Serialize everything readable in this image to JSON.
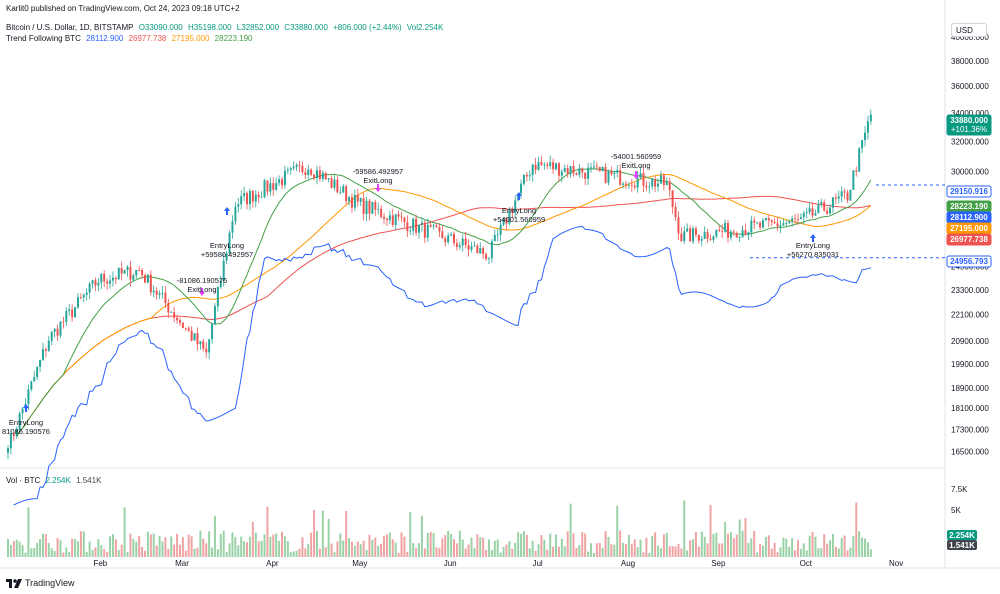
{
  "header": {
    "published_line": "Karlit0 published on TradingView.com, Oct 24, 2023 09:18 UTC+2",
    "symbol": "Bitcoin / U.S. Dollar, 1D, BITSTAMP",
    "open": "O33090.000",
    "high": "H35198.000",
    "low": "L32852.000",
    "close": "C33880.000",
    "change": "+806.000 (+2.44%)",
    "volume": "Vol2.254K",
    "indicator_name": "Trend Following BTC",
    "indicator_values": [
      "28112.900",
      "26977.738",
      "27195.000",
      "28223.190"
    ]
  },
  "currency_button": "USD",
  "footer_brand": "TradingView",
  "colors": {
    "up": "#26a69a",
    "down": "#ef5350",
    "fast_ma": "#43a047",
    "slow_ma": "#ef5350",
    "mid_ma": "#ff9800",
    "blue_line": "#2962ff",
    "last_price_bg": "#089981",
    "buy_arrow": "#2962ff",
    "sell_arrow": "#e040fb"
  },
  "chart_data": {
    "type": "candlestick",
    "x_axis_labels": [
      "Feb",
      "Mar",
      "Apr",
      "May",
      "Jun",
      "Jul",
      "Aug",
      "Sep",
      "Oct",
      "Nov"
    ],
    "y_axis_scale": "log",
    "y_axis_labels": [
      40000,
      38000,
      36000,
      34000,
      32000,
      30000,
      28000,
      26000,
      24500,
      23300,
      22100,
      20900,
      19900,
      18900,
      18100,
      17300,
      16500
    ],
    "y_range": [
      16000,
      42000
    ],
    "volume_axis_labels": [
      "7.5K",
      "5K"
    ],
    "price_close_monthly": [
      {
        "date": "2023-01-01",
        "close": 16620
      },
      {
        "date": "2023-01-15",
        "close": 21000
      },
      {
        "date": "2023-02-01",
        "close": 23800
      },
      {
        "date": "2023-02-15",
        "close": 24300
      },
      {
        "date": "2023-03-10",
        "close": 20300
      },
      {
        "date": "2023-03-20",
        "close": 28000
      },
      {
        "date": "2023-04-14",
        "close": 30400
      },
      {
        "date": "2023-05-01",
        "close": 28000
      },
      {
        "date": "2023-06-15",
        "close": 25100
      },
      {
        "date": "2023-06-30",
        "close": 30500
      },
      {
        "date": "2023-08-15",
        "close": 29200
      },
      {
        "date": "2023-08-20",
        "close": 26100
      },
      {
        "date": "2023-09-30",
        "close": 27000
      },
      {
        "date": "2023-10-16",
        "close": 28500
      },
      {
        "date": "2023-10-24",
        "close": 33880
      }
    ],
    "price_labels": [
      {
        "value": "33880.000",
        "sub": "+101.36%",
        "color": "#089981"
      },
      {
        "value": "29150.916",
        "color": "#2962ff",
        "style": "outline"
      },
      {
        "value": "28223.190",
        "color": "#43a047"
      },
      {
        "value": "28112.900",
        "color": "#2962ff"
      },
      {
        "value": "27195.000",
        "color": "#ff9800"
      },
      {
        "value": "26977.738",
        "color": "#ef5350"
      },
      {
        "value": "24956.793",
        "color": "#2962ff",
        "style": "outline"
      }
    ],
    "volume_labels": [
      {
        "value": "2.254K",
        "color": "#089981"
      },
      {
        "value": "1.541K",
        "color": "#434651"
      }
    ],
    "volume_legend": {
      "name": "Vol · BTC",
      "values": [
        "2.254K",
        "1.541K"
      ]
    },
    "signals": [
      {
        "type": "entry",
        "lines": [
          "EntryLong",
          "81086.190576"
        ]
      },
      {
        "type": "exit",
        "lines": [
          "-81086.190576",
          "ExitLong"
        ]
      },
      {
        "type": "entry",
        "lines": [
          "EntryLong",
          "+59586.492957"
        ]
      },
      {
        "type": "exit",
        "lines": [
          "-59586.492957",
          "ExitLong"
        ]
      },
      {
        "type": "entry",
        "lines": [
          "EntryLong",
          "+54001.560959"
        ]
      },
      {
        "type": "exit",
        "lines": [
          "-54001.560959",
          "ExitLong"
        ]
      },
      {
        "type": "entry",
        "lines": [
          "EntryLong",
          "+56270.835031"
        ]
      }
    ]
  }
}
